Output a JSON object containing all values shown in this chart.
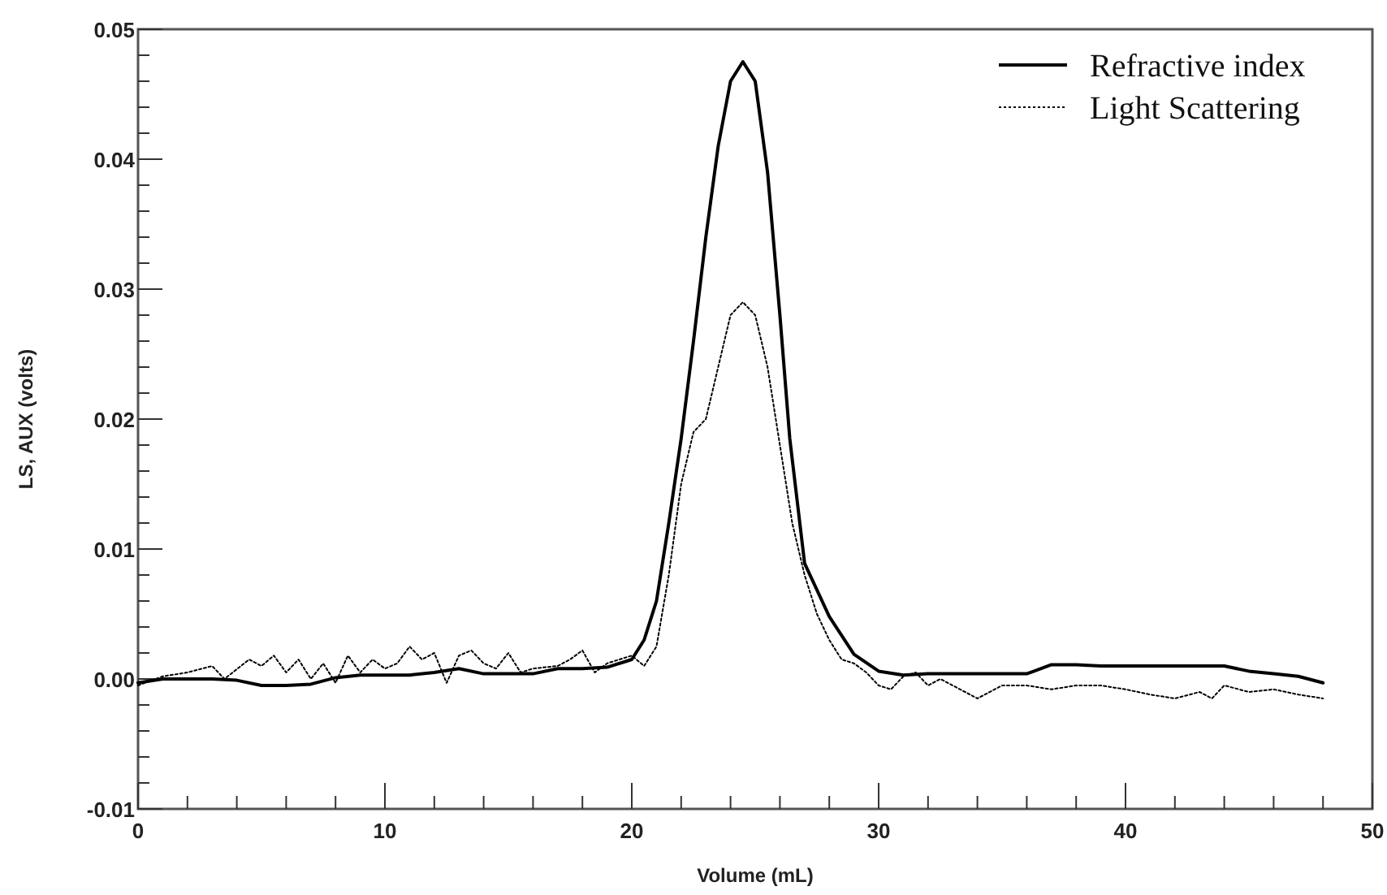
{
  "chart_data": {
    "type": "line",
    "xlabel": "Volume (mL)",
    "ylabel": "LS, AUX (volts)",
    "xlim": [
      0,
      50
    ],
    "xticks": [
      0,
      10,
      20,
      30,
      40,
      50
    ],
    "ylim": [
      -0.01,
      0.05
    ],
    "yticks": [
      -0.01,
      {
        "value": 0,
        "label": "0.00"
      },
      0.01,
      0.02,
      0.03,
      0.04,
      0.05
    ],
    "legend": "top right",
    "grid": false,
    "marker": "none",
    "series": [
      {
        "name": "Refractive index",
        "color": "#000000",
        "line_style": "solid",
        "x": [
          0,
          1,
          2,
          3,
          4,
          5,
          6,
          7,
          8,
          9,
          10,
          11,
          12,
          13,
          14,
          15,
          16,
          17,
          18,
          19,
          20,
          20.5,
          21,
          21.5,
          22,
          22.5,
          23,
          23.5,
          24,
          24.5,
          25,
          25.5,
          26,
          26.4,
          27,
          28,
          29,
          30,
          31,
          32,
          33,
          34,
          35,
          36,
          37,
          38,
          39,
          40,
          41,
          42,
          43,
          44,
          45,
          46,
          47,
          48
        ],
        "values": [
          -0.0003,
          0,
          0,
          0,
          -0.0001,
          -0.0005,
          -0.0005,
          -0.0004,
          0.0001,
          0.0003,
          0.0003,
          0.0003,
          0.0005,
          0.0008,
          0.0004,
          0.0004,
          0.0004,
          0.0008,
          0.0008,
          0.0009,
          0.0015,
          0.003,
          0.006,
          0.012,
          0.0185,
          0.026,
          0.034,
          0.041,
          0.046,
          0.0475,
          0.046,
          0.039,
          0.028,
          0.0185,
          0.0089,
          0.0048,
          0.0019,
          0.0006,
          0.0003,
          0.0004,
          0.0004,
          0.0004,
          0.0004,
          0.0004,
          0.0011,
          0.0011,
          0.001,
          0.001,
          0.001,
          0.001,
          0.001,
          0.001,
          0.0006,
          0.0004,
          0.0002,
          -0.0003
        ]
      },
      {
        "name": "Light Scattering",
        "color": "#000000",
        "line_style": "dotted",
        "x": [
          0,
          1,
          2,
          3,
          3.5,
          4.5,
          5,
          5.5,
          6,
          6.5,
          7,
          7.5,
          8,
          8.5,
          9,
          9.5,
          10,
          10.5,
          11,
          11.5,
          12,
          12.5,
          13,
          13.5,
          14,
          14.5,
          15,
          15.5,
          16,
          17,
          17.5,
          18,
          18.5,
          19,
          19.5,
          20,
          20.5,
          21,
          21.5,
          22,
          22.5,
          23,
          23.5,
          24,
          24.5,
          25,
          25.5,
          26,
          26.5,
          27,
          27.5,
          28,
          28.5,
          29,
          29.5,
          30,
          30.5,
          31,
          31.5,
          32,
          32.5,
          33,
          33.5,
          34,
          35,
          36,
          37,
          38,
          39,
          40,
          41,
          42,
          43,
          43.5,
          44,
          45,
          46,
          47,
          48
        ],
        "values": [
          -0.0005,
          0.0002,
          0.0005,
          0.001,
          0,
          0.0015,
          0.001,
          0.0018,
          0.0005,
          0.0015,
          0,
          0.0012,
          -0.0003,
          0.0018,
          0.0005,
          0.0015,
          0.0008,
          0.0012,
          0.0025,
          0.0015,
          0.002,
          -0.0003,
          0.0018,
          0.0022,
          0.0012,
          0.0008,
          0.002,
          0.0005,
          0.0008,
          0.001,
          0.0015,
          0.0022,
          0.0005,
          0.0012,
          0.0015,
          0.0018,
          0.001,
          0.0025,
          0.008,
          0.015,
          0.019,
          0.02,
          0.024,
          0.028,
          0.029,
          0.028,
          0.024,
          0.018,
          0.012,
          0.008,
          0.005,
          0.003,
          0.0015,
          0.0012,
          0.0005,
          -0.0005,
          -0.0008,
          0.0002,
          0.0005,
          -0.0005,
          0,
          -0.0005,
          -0.001,
          -0.0015,
          -0.0005,
          -0.0005,
          -0.0008,
          -0.0005,
          -0.0005,
          -0.0008,
          -0.0012,
          -0.0015,
          -0.001,
          -0.0015,
          -0.0005,
          -0.001,
          -0.0008,
          -0.0012,
          -0.0015
        ]
      }
    ]
  }
}
